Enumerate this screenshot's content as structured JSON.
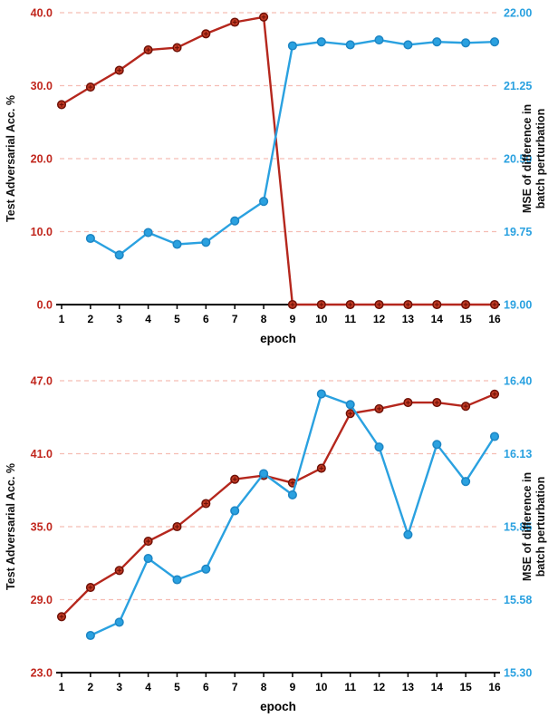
{
  "figure": {
    "background": "#ffffff"
  },
  "chart_data": [
    {
      "type": "line",
      "title": "",
      "xlabel": "epoch",
      "x_range": [
        1,
        16
      ],
      "x_ticks": [
        "1",
        "2",
        "3",
        "4",
        "5",
        "6",
        "7",
        "8",
        "9",
        "10",
        "11",
        "12",
        "13",
        "14",
        "15",
        "16"
      ],
      "grid": true,
      "grid_color": "#f5bdb4",
      "axis_line_color": "#000000",
      "left_axis": {
        "label": "Test Adversarial Acc. %",
        "label_color": "#111111",
        "color": "#c1271e",
        "range": [
          0.0,
          40.0
        ],
        "tick_values": [
          0,
          10,
          20,
          30,
          40
        ],
        "tick_labels": [
          "0.0",
          "10.0",
          "20.0",
          "30.0",
          "40.0"
        ]
      },
      "right_axis": {
        "label": "MSE of difference in batch perturbation",
        "label_lines": [
          "MSE of difference in",
          "batch perturbation"
        ],
        "label_color": "#111111",
        "color": "#2aa1e0",
        "range": [
          19.0,
          22.0
        ],
        "tick_values": [
          19.0,
          19.75,
          20.5,
          21.25,
          22.0
        ],
        "tick_labels": [
          "19.00",
          "19.75",
          "20.50",
          "21.25",
          "22.00"
        ]
      },
      "series": [
        {
          "name": "test-adversarial-acc",
          "axis": "left",
          "color": "#b5271d",
          "marker": "circle-cross",
          "marker_fill": "#c23a24",
          "marker_edge": "#6f1208",
          "x": [
            1,
            2,
            3,
            4,
            5,
            6,
            7,
            8,
            9,
            10,
            11,
            12,
            13,
            14,
            15,
            16
          ],
          "values": [
            27.4,
            29.8,
            32.1,
            34.9,
            35.2,
            37.1,
            38.7,
            39.4,
            0.0,
            0.0,
            0.0,
            0.0,
            0.0,
            0.0,
            0.0,
            0.0
          ]
        },
        {
          "name": "mse-batch-perturbation",
          "axis": "right",
          "color": "#2aa1e0",
          "marker": "circle",
          "marker_fill": "#2aa1e0",
          "marker_edge": "#1e86c4",
          "x": [
            2,
            3,
            4,
            5,
            6,
            7,
            8,
            9,
            10,
            11,
            12,
            13,
            14,
            15,
            16
          ],
          "values": [
            19.68,
            19.51,
            19.74,
            19.62,
            19.64,
            19.86,
            20.06,
            21.66,
            21.7,
            21.67,
            21.72,
            21.67,
            21.7,
            21.69,
            21.7
          ]
        }
      ]
    },
    {
      "type": "line",
      "title": "",
      "xlabel": "epoch",
      "x_range": [
        1,
        16
      ],
      "x_ticks": [
        "1",
        "2",
        "3",
        "4",
        "5",
        "6",
        "7",
        "8",
        "9",
        "10",
        "11",
        "12",
        "13",
        "14",
        "15",
        "16"
      ],
      "grid": true,
      "grid_color": "#f5bdb4",
      "axis_line_color": "#000000",
      "left_axis": {
        "label": "Test Adversarial Acc. %",
        "label_color": "#111111",
        "color": "#c1271e",
        "range": [
          23.0,
          47.0
        ],
        "tick_values": [
          23.0,
          29.0,
          35.0,
          41.0,
          47.0
        ],
        "tick_labels": [
          "23.0",
          "29.0",
          "35.0",
          "41.0",
          "47.0"
        ]
      },
      "right_axis": {
        "label": "MSE of difference in batch perturbation",
        "label_lines": [
          "MSE of difference in",
          "batch perturbation"
        ],
        "label_color": "#111111",
        "color": "#2aa1e0",
        "range": [
          15.3,
          16.4
        ],
        "tick_values": [
          15.3,
          15.575,
          15.85,
          16.125,
          16.4
        ],
        "tick_labels": [
          "15.30",
          "15.58",
          "15.85",
          "16.13",
          "16.40"
        ]
      },
      "series": [
        {
          "name": "test-adversarial-acc",
          "axis": "left",
          "color": "#b5271d",
          "marker": "circle-cross",
          "marker_fill": "#c23a24",
          "marker_edge": "#6f1208",
          "x": [
            1,
            2,
            3,
            4,
            5,
            6,
            7,
            8,
            9,
            10,
            11,
            12,
            13,
            14,
            15,
            16
          ],
          "values": [
            27.6,
            30.0,
            31.4,
            33.8,
            35.0,
            36.9,
            38.9,
            39.2,
            38.6,
            39.8,
            44.3,
            44.7,
            45.2,
            45.2,
            44.9,
            45.9
          ]
        },
        {
          "name": "mse-batch-perturbation",
          "axis": "right",
          "color": "#2aa1e0",
          "marker": "circle",
          "marker_fill": "#2aa1e0",
          "marker_edge": "#1e86c4",
          "x": [
            2,
            3,
            4,
            5,
            6,
            7,
            8,
            9,
            10,
            11,
            12,
            13,
            14,
            15,
            16
          ],
          "values": [
            15.44,
            15.49,
            15.73,
            15.65,
            15.69,
            15.91,
            16.05,
            15.97,
            16.35,
            16.31,
            16.15,
            15.82,
            16.16,
            16.02,
            16.19
          ]
        }
      ]
    }
  ]
}
